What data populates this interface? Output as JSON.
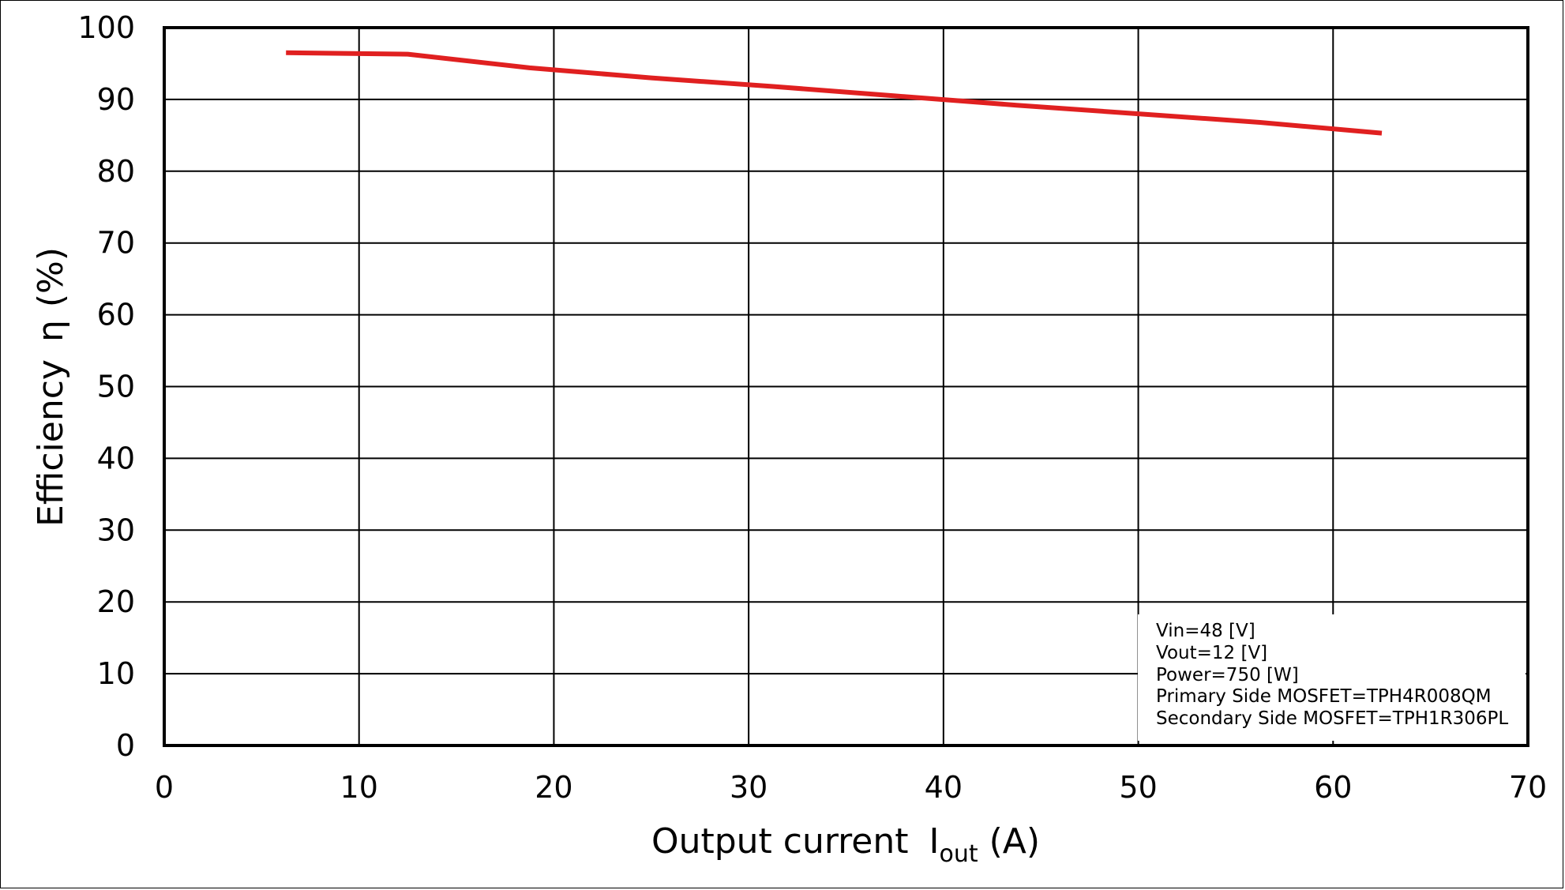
{
  "chart_data": {
    "type": "line",
    "xlabel": "Output current",
    "xlabel_symbol": "I",
    "xlabel_subscript": "out",
    "xlabel_unit": "(A)",
    "ylabel": "Efficiency",
    "ylabel_symbol": "η",
    "ylabel_unit": "(%)",
    "xlim": [
      0,
      70
    ],
    "ylim": [
      0,
      100
    ],
    "xticks": [
      0,
      10,
      20,
      30,
      40,
      50,
      60,
      70
    ],
    "yticks": [
      0,
      10,
      20,
      30,
      40,
      50,
      60,
      70,
      80,
      90,
      100
    ],
    "grid": true,
    "series": [
      {
        "color": "#e02020",
        "x": [
          6.25,
          12.5,
          18.75,
          25,
          31.25,
          37.5,
          43.75,
          50,
          56.25,
          62.5
        ],
        "y": [
          96.5,
          96.3,
          94.4,
          93.0,
          91.8,
          90.5,
          89.2,
          88.0,
          86.8,
          85.3
        ]
      }
    ],
    "annotation": [
      "Vin=48 [V]",
      "Vout=12 [V]",
      "Power=750 [W]",
      "Primary Side MOSFET=TPH4R008QM",
      "Secondary Side MOSFET=TPH1R306PL"
    ]
  }
}
